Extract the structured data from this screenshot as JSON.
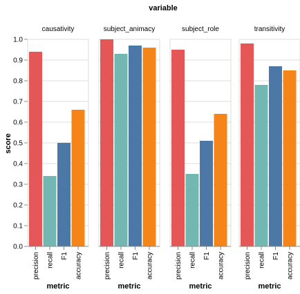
{
  "chart_data": {
    "type": "bar",
    "title": "variable",
    "xlabel": "metric",
    "ylabel": "score",
    "ylim": [
      0,
      1
    ],
    "yticks": [
      "0.0",
      "0.1",
      "0.2",
      "0.3",
      "0.4",
      "0.5",
      "0.6",
      "0.7",
      "0.8",
      "0.9",
      "1.0"
    ],
    "categories": [
      "precision",
      "recall",
      "F1",
      "accuracy"
    ],
    "colors": {
      "precision": "#e45756",
      "recall": "#72b7b2",
      "F1": "#4c78a8",
      "accuracy": "#f58518"
    },
    "facets": [
      {
        "name": "causativity",
        "values": [
          0.94,
          0.34,
          0.5,
          0.66
        ]
      },
      {
        "name": "subject_animacy",
        "values": [
          1.0,
          0.93,
          0.97,
          0.96
        ]
      },
      {
        "name": "subject_role",
        "values": [
          0.95,
          0.35,
          0.51,
          0.64
        ]
      },
      {
        "name": "transitivity",
        "values": [
          0.98,
          0.78,
          0.87,
          0.85
        ]
      }
    ],
    "grid": true
  }
}
